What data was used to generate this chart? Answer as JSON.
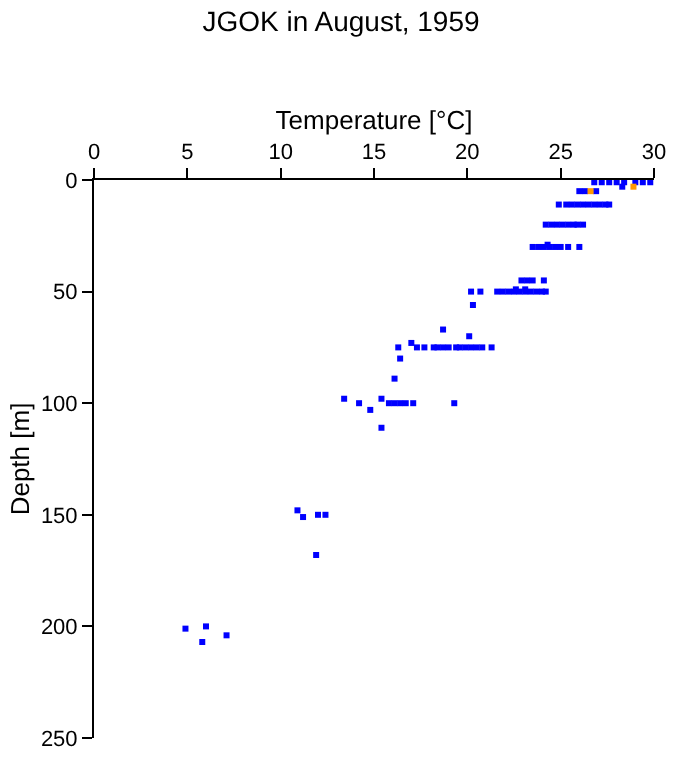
{
  "chart_data": {
    "type": "scatter",
    "title": "JGOK in August, 1959",
    "xlabel": "Temperature [°C]",
    "ylabel": "Depth [m]",
    "xlim": [
      0,
      30
    ],
    "xticks": [
      0,
      5,
      10,
      15,
      20,
      25,
      30
    ],
    "ylim": [
      250,
      0
    ],
    "yticks": [
      0,
      50,
      100,
      150,
      200,
      250
    ],
    "grid": false,
    "marker": "square",
    "series": [
      {
        "color": "#0000ff",
        "x": [
          26.8,
          27.2,
          27.6,
          28.0,
          28.4,
          29.0,
          29.4,
          29.8,
          28.3,
          26.0,
          26.3,
          26.9,
          24.9,
          25.3,
          25.6,
          25.9,
          26.2,
          26.5,
          26.8,
          27.1,
          27.4,
          27.6,
          24.2,
          24.5,
          24.8,
          25.1,
          25.4,
          25.7,
          25.9,
          26.2,
          23.5,
          23.8,
          24.1,
          24.4,
          24.7,
          25.0,
          25.4,
          26.0,
          24.3,
          22.9,
          23.2,
          23.5,
          24.1,
          20.2,
          20.7,
          21.6,
          21.9,
          22.2,
          22.5,
          22.8,
          23.1,
          23.4,
          23.7,
          24.0,
          24.2,
          22.6,
          23.1,
          20.3,
          18.7,
          20.1,
          16.3,
          17.3,
          17.7,
          18.2,
          18.4,
          18.7,
          19.0,
          19.4,
          19.6,
          19.9,
          20.2,
          20.5,
          20.8,
          21.3,
          17.0,
          16.4,
          16.1,
          13.4,
          14.2,
          14.8,
          15.4,
          15.8,
          16.1,
          16.4,
          16.7,
          17.1,
          19.3,
          15.4,
          10.9,
          11.2,
          12.0,
          12.4,
          11.9,
          4.9,
          6.0,
          5.8,
          7.1
        ],
        "values": [
          1,
          1,
          1,
          1,
          1,
          1,
          1,
          1,
          3,
          5,
          5,
          5,
          11,
          11,
          11,
          11,
          11,
          11,
          11,
          11,
          11,
          11,
          20,
          20,
          20,
          20,
          20,
          20,
          20,
          20,
          30,
          30,
          30,
          30,
          30,
          30,
          30,
          30,
          29,
          45,
          45,
          45,
          45,
          50,
          50,
          50,
          50,
          50,
          50,
          50,
          50,
          50,
          50,
          50,
          50,
          49,
          49,
          56,
          67,
          70,
          75,
          75,
          75,
          75,
          75,
          75,
          75,
          75,
          75,
          75,
          75,
          75,
          75,
          75,
          73,
          80,
          89,
          98,
          100,
          103,
          98,
          100,
          100,
          100,
          100,
          100,
          100,
          111,
          148,
          151,
          150,
          150,
          168,
          201,
          200,
          207,
          204
        ]
      },
      {
        "color": "#ff9900",
        "x": [
          28.9,
          26.6
        ],
        "values": [
          3,
          5
        ]
      }
    ]
  }
}
